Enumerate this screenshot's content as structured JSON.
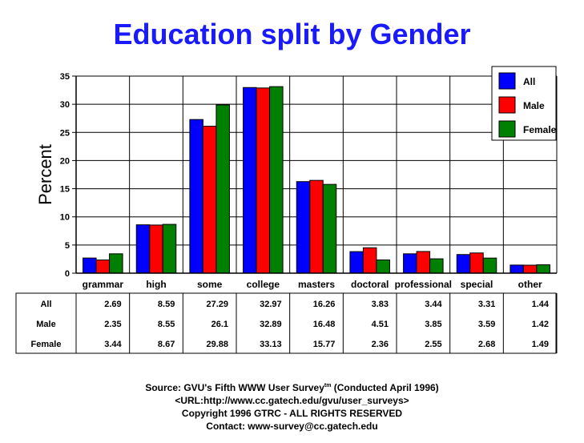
{
  "title": "Education split by Gender",
  "chart_data": {
    "type": "bar",
    "title": "Education split by Gender",
    "ylabel": "Percent",
    "xlabel": "",
    "ylim": [
      0,
      35
    ],
    "yticks": [
      0,
      5,
      10,
      15,
      20,
      25,
      30,
      35
    ],
    "grid": true,
    "legend_position": "top-right",
    "categories": [
      "grammar",
      "high",
      "some",
      "college",
      "masters",
      "doctoral",
      "professional",
      "special",
      "other"
    ],
    "series": [
      {
        "name": "All",
        "color": "#0000ff",
        "values": [
          2.69,
          8.59,
          27.29,
          32.97,
          16.26,
          3.83,
          3.44,
          3.31,
          1.44
        ]
      },
      {
        "name": "Male",
        "color": "#ff0000",
        "values": [
          2.35,
          8.55,
          26.1,
          32.89,
          16.48,
          4.51,
          3.85,
          3.59,
          1.42
        ]
      },
      {
        "name": "Female",
        "color": "#008000",
        "values": [
          3.44,
          8.67,
          29.88,
          33.13,
          15.77,
          2.36,
          2.55,
          2.68,
          1.49
        ]
      }
    ],
    "table": {
      "rows": [
        "All",
        "Male",
        "Female"
      ],
      "cells": [
        [
          "2.69",
          "8.59",
          "27.29",
          "32.97",
          "16.26",
          "3.83",
          "3.44",
          "3.31",
          "1.44"
        ],
        [
          "2.35",
          "8.55",
          "26.1",
          "32.89",
          "16.48",
          "4.51",
          "3.85",
          "3.59",
          "1.42"
        ],
        [
          "3.44",
          "8.67",
          "29.88",
          "33.13",
          "15.77",
          "2.36",
          "2.55",
          "2.68",
          "1.49"
        ]
      ]
    }
  },
  "footer": {
    "line1_main": "Source: GVU's Fifth WWW User Survey",
    "line1_sup": "tm",
    "line1_tail": "  (Conducted April 1996)",
    "line2": "<URL:http://www.cc.gatech.edu/gvu/user_surveys>",
    "line3": "Copyright 1996 GTRC -  ALL RIGHTS RESERVED",
    "line4": "Contact: www-survey@cc.gatech.edu"
  }
}
